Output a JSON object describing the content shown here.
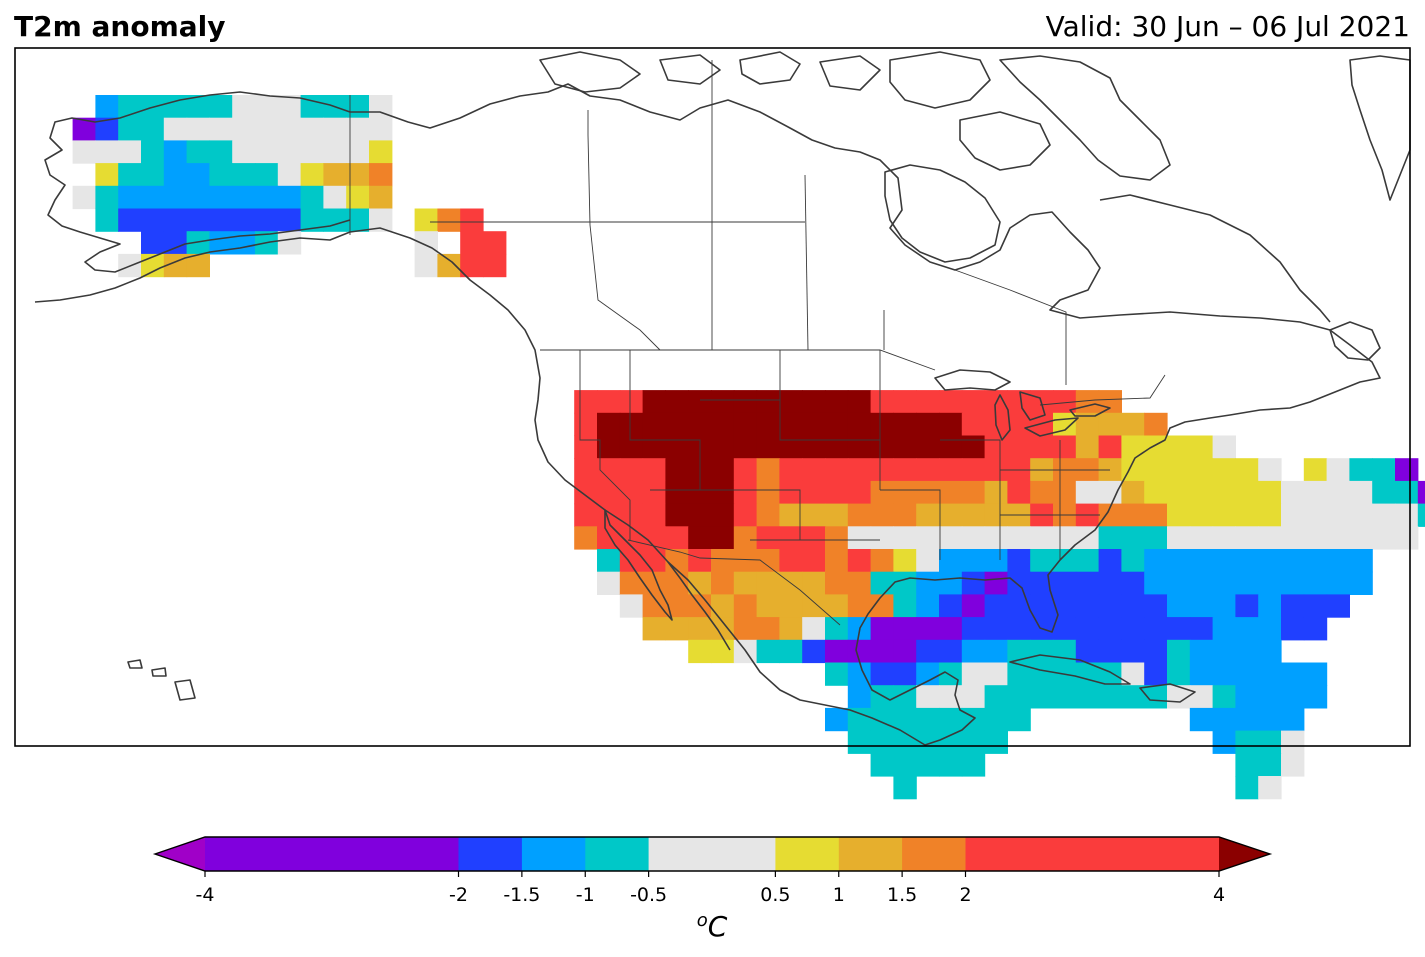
{
  "title": "T2m anomaly",
  "valid": "Valid: 30 Jun – 06 Jul 2021",
  "colorbar": {
    "unit": "oC",
    "ticks": [
      "-4",
      "-2",
      "-1.5",
      "-1",
      "-0.5",
      "0.5",
      "1",
      "1.5",
      "2",
      "4"
    ],
    "levels": [
      -4,
      -2,
      -1.5,
      -1,
      -0.5,
      0.5,
      1,
      1.5,
      2,
      4
    ],
    "colors": [
      "#8000dd",
      "#2040ff",
      "#00a0ff",
      "#00c8c8",
      "#e6e6e6",
      "#e6dc32",
      "#e6af2d",
      "#f08228",
      "#fa3c3c"
    ],
    "under_color": "#a000c8",
    "over_color": "#8b0000"
  },
  "chart_data": {
    "type": "heatmap",
    "palette": {
      "V": "#8000dd",
      "B": "#2040ff",
      "L": "#00a0ff",
      "C": "#00c8c8",
      "G": "#e6e6e6",
      "Y": "#e6dc32",
      "O": "#e6af2d",
      "A": "#f08228",
      "R": "#fa3c3c",
      "D": "#8b0000"
    },
    "legend": {
      "V": "< -2",
      "B": "-2 to -1.5",
      "L": "-1.5 to -1",
      "C": "-1 to -0.5",
      "G": "-0.5 to 0.5",
      "Y": "0.5 to 1",
      "O": "1 to 1.5",
      "A": "1.5 to 2",
      "R": "2 to 4",
      "D": "> 4"
    },
    "grid_rows": [
      "...LCCCCCGGGCCCG......................................................",
      "..VBCCGGGGGGGGGG......................................................",
      "..GGGCLCCGGGGGGY......................................................",
      "...YCCLLCCCGYOOA......................................................",
      "..GCLLLLLLLLCGYO......................................................",
      "...CBBBBBBBBCCCG.YAR..................................................",
      ".....BBCLLCG.....G.RR.................................................",
      "....GYOO.........GORR.................................................",
      "......................................................................",
      "......................................................................",
      "......................................................................",
      "......................................................................",
      "......................................................................",
      "........................RRRDDDDDDDDDDRRRRRRRRRAA......................",
      "........................RDDDDDDDDDDDDDDDDRRRRYOOOA.....................",
      "........................RDDDDDDDDDDDDDDDDDRRRRORYYYYG.................",
      "........................RRRRDDDRARRRRRRRRRRROAAOYYYYYYG.YGCCV.........",
      "........................RRRRDDDRARRRRAAAAAORAAGGOYYYYYYGGGGCCV........",
      "........................RRRRDDDRAOOOAAAOOOOORARAAAYYYYYGGGGGGCL.......",
      "........................ARRRRDDARRRAGGGGGGGGGGGCCCGGGGGGGGGGG.........",
      ".........................CRRARAAARRARAYGLLLBCCCBCLLLLLLLLLL...........",
      ".........................GAAAOAOOOOAACCLLBVBBBBBBLLLLLLLLLL...........",
      "..........................GAAAOAOOOOAACLBVBBBBBBBBLLLBLBBB............",
      "...........................OOOOAAOGCLVVVVBBBBBBBBBBBLLLBB.............",
      ".............................YYGCCBVVVVBBLLCCCBBBBCLLLL...............",
      "...................................CLBBLCGGCCCCCGBCLLLLLL..............",
      "....................................LCCGGGCCCCCCCCGGCLLLL..............",
      "...................................LCCCCCCCC.......LLLLL...............",
      "....................................CCCCCCC.........LCCG...............",
      ".....................................CCCCC...........CCG...............",
      "......................................C..............CG..............."
    ]
  }
}
